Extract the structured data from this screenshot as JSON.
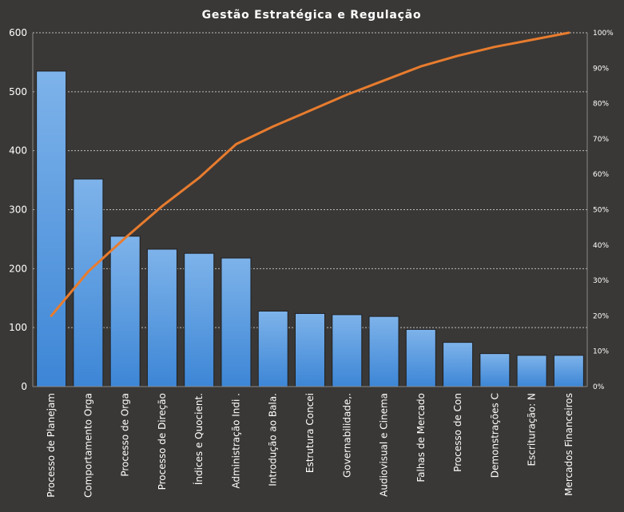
{
  "chart_data": {
    "type": "bar",
    "title": "Gestão  Estratégica  e  Regulação",
    "categories": [
      "Processo de Planejam",
      "Comportamento  Orga",
      "Processo de Orga",
      "Processo de Direção",
      "Índices e Quocient.",
      "Administração Indi .",
      "Introdução  ao Bala.",
      "Estrutura Concei",
      "Governabilidade,.",
      "Audiovisual e Cinema",
      "Falhas de Mercado",
      "Processo de Con",
      "Demonstrações C",
      "Escrituração: N",
      "Mercados Financeiros"
    ],
    "series": [
      {
        "type": "bar",
        "values": [
          535,
          352,
          255,
          233,
          226,
          218,
          128,
          124,
          122,
          119,
          97,
          75,
          56,
          53,
          53
        ]
      },
      {
        "type": "line",
        "axis": "right",
        "values": [
          20,
          32.5,
          42,
          51,
          59,
          68.5,
          73.5,
          78,
          82.5,
          86.5,
          90.5,
          93.5,
          96,
          98,
          100
        ]
      }
    ],
    "y_left": {
      "min": 0,
      "max": 600,
      "ticks": [
        "0",
        "100",
        "200",
        "300",
        "400",
        "500",
        "600"
      ]
    },
    "y_right": {
      "min": 0,
      "max": 100,
      "ticks": [
        "0%",
        "10%",
        "20%",
        "30%",
        "40%",
        "50%",
        "60%",
        "70%",
        "80%",
        "90%",
        "100%"
      ]
    },
    "grid": true,
    "colors": {
      "background": "#3a3836",
      "bar": "#4a90d9",
      "bar_light": "#7eb3ea",
      "line": "#e87c2e",
      "grid": "#bdbdbd",
      "text": "#ffffff"
    }
  }
}
